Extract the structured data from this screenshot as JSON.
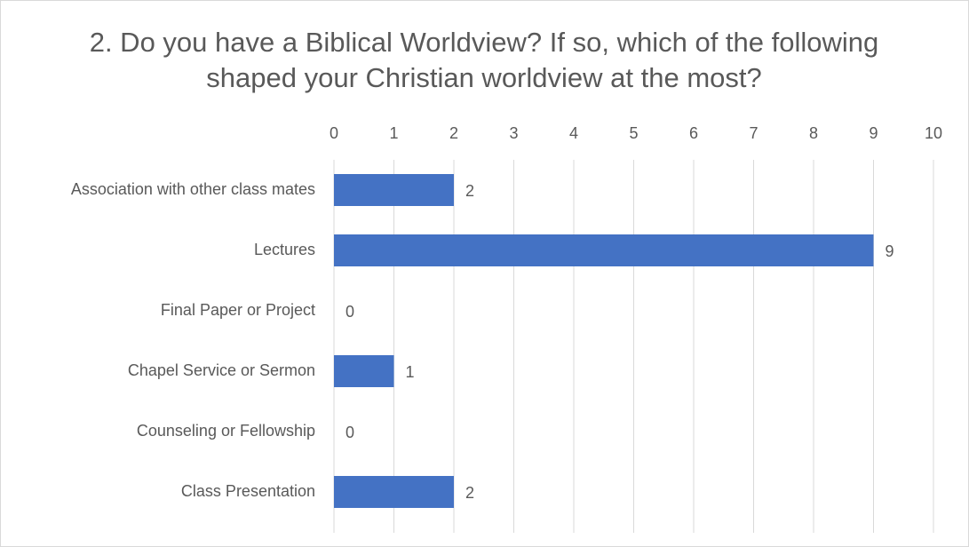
{
  "chart_data": {
    "type": "bar",
    "orientation": "horizontal",
    "title": "2. Do you have a Biblical Worldview? If so, which of the following shaped your Christian worldview at the most?",
    "categories": [
      "Association with other class mates",
      "Lectures",
      "Final Paper or Project",
      "Chapel Service or Sermon",
      "Counseling or Fellowship",
      "Class Presentation"
    ],
    "values": [
      2,
      9,
      0,
      1,
      0,
      2
    ],
    "color": "#4472c4",
    "xlim": [
      0,
      10
    ],
    "xticks": [
      0,
      1,
      2,
      3,
      4,
      5,
      6,
      7,
      8,
      9,
      10
    ],
    "grid": true
  }
}
